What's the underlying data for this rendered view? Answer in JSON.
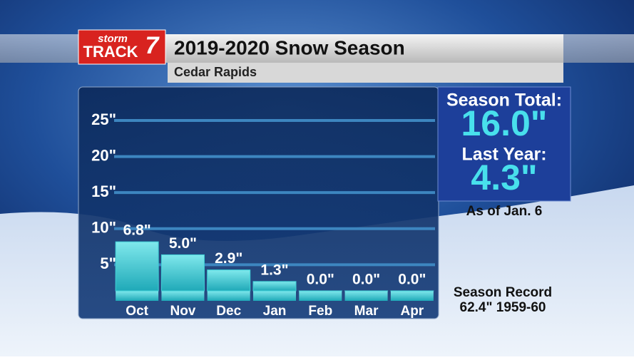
{
  "header": {
    "logo_top": "storm",
    "logo_main": "TRACK",
    "logo_number": "7"
  },
  "chart_data": {
    "type": "bar",
    "title": "2019-2020 Snow Season",
    "subtitle": "Cedar Rapids",
    "categories": [
      "Oct",
      "Nov",
      "Dec",
      "Jan",
      "Feb",
      "Mar",
      "Apr"
    ],
    "values": [
      6.8,
      5.0,
      2.9,
      1.3,
      0.0,
      0.0,
      0.0
    ],
    "value_labels": [
      "6.8\"",
      "5.0\"",
      "2.9\"",
      "1.3\"",
      "0.0\"",
      "0.0\"",
      "0.0\""
    ],
    "color": "#3fd0d6",
    "ylim": [
      0,
      28
    ],
    "yticks": [
      {
        "value": 5,
        "label": "5\""
      },
      {
        "value": 10,
        "label": "10\""
      },
      {
        "value": 15,
        "label": "15\""
      },
      {
        "value": 20,
        "label": "20\""
      },
      {
        "value": 25,
        "label": "25\""
      }
    ],
    "grid": true,
    "annotations": {
      "total_label": "Season Total:",
      "total_value": "16.0\"",
      "last_year_label": "Last Year:",
      "last_year_value": "4.3\"",
      "as_of": "As of Jan. 6",
      "record_label": "Season Record",
      "record_value": "62.4\" 1959-60"
    }
  }
}
